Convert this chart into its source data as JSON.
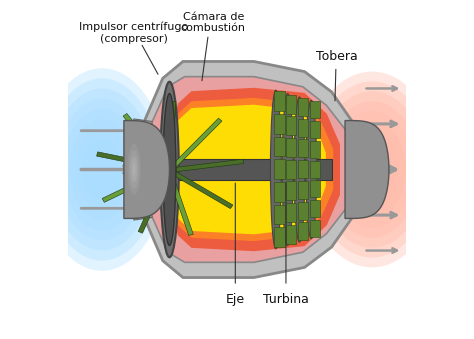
{
  "labels": {
    "impulsor": "Impulsor centrífugo\n(compresor)",
    "eje": "Eje",
    "turbina": "Turbina",
    "camara": "Cámara de\ncombustión",
    "tobera": "Tobera"
  },
  "colors": {
    "bg": "#f0f0f0",
    "outer_casing": "#c0c0c0",
    "outer_edge": "#888888",
    "inner_pink": "#e8a0a0",
    "hot_red": "#ee5533",
    "hot_orange": "#ff8822",
    "hot_yellow": "#ffee00",
    "compressor_dark": "#4a6e2a",
    "compressor_light": "#6a9e3a",
    "shaft_color": "#555555",
    "turbine_blade": "#5a8030",
    "turbine_edge": "#2a4a10",
    "nose_color": "#909090",
    "nose_edge": "#555555",
    "arrow_gray": "#999999",
    "arrow_dark": "#777777",
    "text_color": "#111111",
    "blue_glow": "#aaddff",
    "red_glow": "#ffbbaa"
  }
}
